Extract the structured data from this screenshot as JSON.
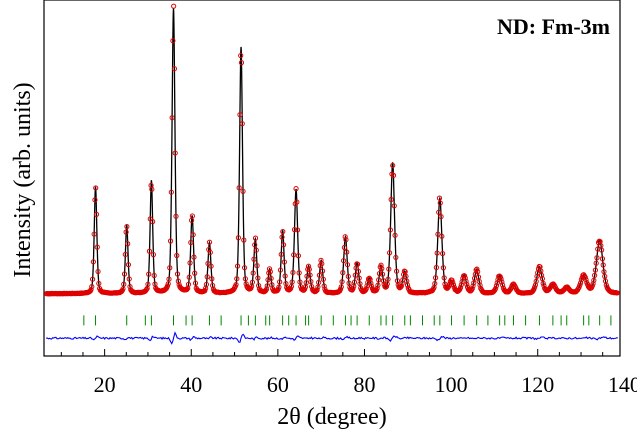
{
  "chart_data": {
    "type": "line",
    "title": "",
    "annotation": "ND: Fm-3m",
    "xlabel": "2θ (degree)",
    "ylabel": "Intensity (arb. units)",
    "xlim": [
      6,
      139
    ],
    "ylim": [
      -0.17,
      1.03
    ],
    "xticks": [
      20,
      40,
      60,
      80,
      100,
      120,
      140
    ],
    "yticks_shown": false,
    "grid": false,
    "legend": "none",
    "colors": {
      "observed": "#e00000",
      "calculated": "#000000",
      "difference": "#0000ff",
      "bragg": "#008800"
    },
    "background": 0.04,
    "peaks": [
      {
        "x": 17.9,
        "h": 0.36,
        "w": 0.45
      },
      {
        "x": 25.1,
        "h": 0.23,
        "w": 0.45
      },
      {
        "x": 30.8,
        "h": 0.38,
        "w": 0.45
      },
      {
        "x": 35.9,
        "h": 0.96,
        "w": 0.5
      },
      {
        "x": 40.2,
        "h": 0.26,
        "w": 0.5
      },
      {
        "x": 44.2,
        "h": 0.17,
        "w": 0.5
      },
      {
        "x": 51.5,
        "h": 0.83,
        "w": 0.5
      },
      {
        "x": 54.8,
        "h": 0.18,
        "w": 0.5
      },
      {
        "x": 58.1,
        "h": 0.08,
        "w": 0.5
      },
      {
        "x": 61.1,
        "h": 0.21,
        "w": 0.5
      },
      {
        "x": 64.2,
        "h": 0.35,
        "w": 0.55
      },
      {
        "x": 67.1,
        "h": 0.09,
        "w": 0.55
      },
      {
        "x": 70.0,
        "h": 0.11,
        "w": 0.55
      },
      {
        "x": 75.6,
        "h": 0.19,
        "w": 0.6
      },
      {
        "x": 78.3,
        "h": 0.1,
        "w": 0.6
      },
      {
        "x": 81.1,
        "h": 0.05,
        "w": 0.6
      },
      {
        "x": 83.8,
        "h": 0.09,
        "w": 0.6
      },
      {
        "x": 86.5,
        "h": 0.44,
        "w": 0.65
      },
      {
        "x": 89.3,
        "h": 0.07,
        "w": 0.65
      },
      {
        "x": 97.4,
        "h": 0.32,
        "w": 0.7
      },
      {
        "x": 100.1,
        "h": 0.04,
        "w": 0.7
      },
      {
        "x": 103.0,
        "h": 0.06,
        "w": 0.75
      },
      {
        "x": 105.9,
        "h": 0.08,
        "w": 0.75
      },
      {
        "x": 111.2,
        "h": 0.06,
        "w": 0.8
      },
      {
        "x": 114.4,
        "h": 0.03,
        "w": 0.8
      },
      {
        "x": 120.4,
        "h": 0.09,
        "w": 0.9
      },
      {
        "x": 123.5,
        "h": 0.03,
        "w": 0.9
      },
      {
        "x": 126.7,
        "h": 0.02,
        "w": 0.9
      },
      {
        "x": 130.6,
        "h": 0.06,
        "w": 1.0
      },
      {
        "x": 134.3,
        "h": 0.18,
        "w": 1.1
      }
    ],
    "bragg_positions": [
      15.2,
      17.9,
      25.1,
      29.4,
      30.8,
      35.9,
      38.8,
      40.2,
      44.2,
      46.9,
      51.5,
      53.2,
      54.8,
      57.2,
      58.1,
      61.1,
      62.5,
      64.2,
      66.4,
      67.1,
      70.0,
      72.8,
      75.6,
      76.9,
      78.3,
      81.1,
      83.8,
      85.0,
      86.5,
      89.3,
      90.6,
      93.4,
      96.1,
      97.4,
      100.1,
      103.0,
      105.9,
      108.5,
      111.2,
      112.4,
      114.4,
      117.2,
      120.4,
      123.5,
      125.4,
      126.7,
      130.6,
      131.8,
      134.3,
      136.9
    ],
    "bragg_y": -0.05,
    "difference_offset": -0.11
  }
}
